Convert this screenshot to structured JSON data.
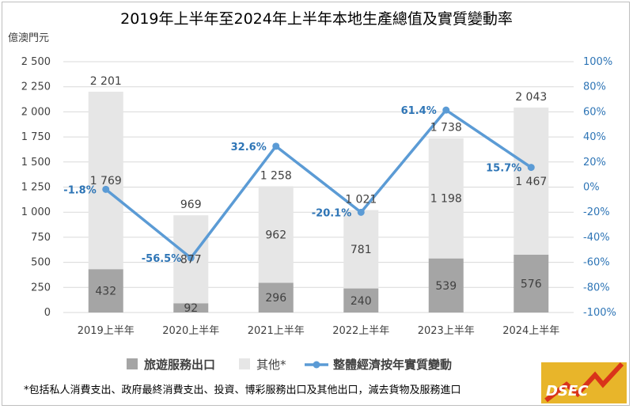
{
  "chart_data": {
    "type": "bar",
    "title": "2019年上半年至2024年上半年本地生產總值及實質變動率",
    "ylabel": "億澳門元",
    "categories": [
      "2019上半年",
      "2020上半年",
      "2021上半年",
      "2022上半年",
      "2023上半年",
      "2024上半年"
    ],
    "ylim": [
      0,
      2500
    ],
    "yticks": [
      0,
      250,
      500,
      750,
      1000,
      1250,
      1500,
      1750,
      2000,
      2250,
      2500
    ],
    "ytick_labels": [
      "0",
      "250",
      "500",
      "750",
      "1 000",
      "1 250",
      "1 500",
      "1 750",
      "2 000",
      "2 250",
      "2 500"
    ],
    "y2lim": [
      -100,
      100
    ],
    "y2ticks": [
      -100,
      -80,
      -60,
      -40,
      -20,
      0,
      20,
      40,
      60,
      80,
      100
    ],
    "y2tick_labels": [
      "-100%",
      "-80%",
      "-60%",
      "-40%",
      "-20%",
      "0%",
      "20%",
      "40%",
      "60%",
      "80%",
      "100%"
    ],
    "series": [
      {
        "name": "旅遊服務出口",
        "type": "stacked-bar",
        "color": "#a5a5a5",
        "values": [
          432,
          92,
          296,
          240,
          539,
          576
        ],
        "labels": [
          "432",
          "92",
          "296",
          "240",
          "539",
          "576"
        ]
      },
      {
        "name": "其他*",
        "type": "stacked-bar",
        "color": "#e6e6e6",
        "values": [
          1769,
          877,
          962,
          781,
          1198,
          1467
        ],
        "labels": [
          "1 769",
          "877",
          "962",
          "781",
          "1 198",
          "1 467"
        ]
      },
      {
        "name": "整體經濟按年實質變動",
        "type": "line",
        "axis": "right",
        "color": "#5b9bd5",
        "values": [
          -1.8,
          -56.5,
          32.6,
          -20.1,
          61.4,
          15.7
        ],
        "labels": [
          "-1.8%",
          "-56.5%",
          "32.6%",
          "-20.1%",
          "61.4%",
          "15.7%"
        ]
      }
    ],
    "totals": [
      2201,
      969,
      1258,
      1021,
      1738,
      2043
    ],
    "total_labels": [
      "2 201",
      "969",
      "1 258",
      "1 021",
      "1 738",
      "2 043"
    ],
    "legend": "bottom",
    "grid": true
  },
  "footnote": "*包括私人消費支出、政府最終消費支出、投資、博彩服務出口及其他出口，減去貨物及服務進口",
  "logo": {
    "text": "DSEC"
  }
}
